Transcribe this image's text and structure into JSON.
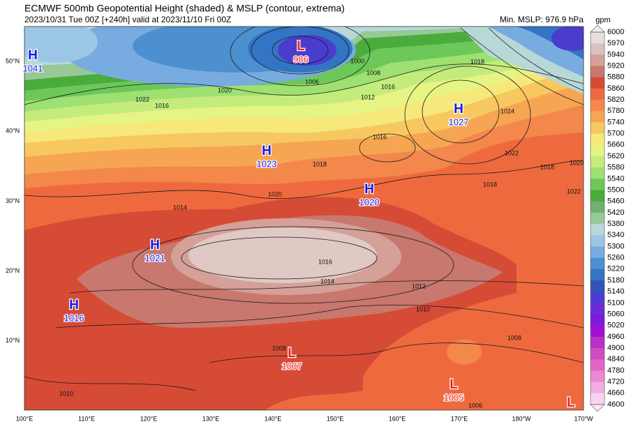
{
  "header": {
    "title": "ECMWF 500mb Geopotential Height (shaded) & MSLP (contour, extrema)",
    "subtitle": "2023/10/31 Tue 00Z [+240h] valid at 2023/11/10 Fri 00Z",
    "min_mslp": "Min. MSLP: 976.9 hPa"
  },
  "colorbar": {
    "unit": "gpm",
    "labels": [
      "6000",
      "5970",
      "5940",
      "5920",
      "5880",
      "5860",
      "5820",
      "5780",
      "5740",
      "5700",
      "5660",
      "5620",
      "5580",
      "5540",
      "5500",
      "5460",
      "5420",
      "5380",
      "5340",
      "5300",
      "5260",
      "5220",
      "5180",
      "5140",
      "5100",
      "5060",
      "5020",
      "4960",
      "4900",
      "4840",
      "4780",
      "4720",
      "4660",
      "4600"
    ],
    "colors": [
      "#e6dede",
      "#d8c2c0",
      "#d4a098",
      "#c8786e",
      "#d64b36",
      "#ee6a3e",
      "#f3874c",
      "#f6a653",
      "#f7c860",
      "#f6e87a",
      "#e6f484",
      "#c4ec7c",
      "#9ee072",
      "#6cc858",
      "#4aac3c",
      "#70b070",
      "#98c898",
      "#b8d8d8",
      "#9cc6e6",
      "#78ace0",
      "#4c90d0",
      "#3474c4",
      "#3054b8",
      "#4a3ccc",
      "#6a2cd8",
      "#8018dc",
      "#a010d0",
      "#b830c8",
      "#d04cc4",
      "#e066c8",
      "#ea88d4",
      "#f2aee2",
      "#f8d4f0"
    ]
  },
  "axes": {
    "lat_labels": [
      "50°N",
      "40°N",
      "30°N",
      "20°N",
      "10°N"
    ],
    "lon_labels": [
      "100°E",
      "110°E",
      "120°E",
      "130°E",
      "140°E",
      "150°E",
      "160°E",
      "170°E",
      "180°W",
      "170°W"
    ]
  },
  "extrema": [
    {
      "letter": "H",
      "value": "1041"
    },
    {
      "letter": "L",
      "value": "986"
    },
    {
      "letter": "H",
      "value": "1027"
    },
    {
      "letter": "H",
      "value": "1023"
    },
    {
      "letter": "H",
      "value": "1020"
    },
    {
      "letter": "H",
      "value": "1021"
    },
    {
      "letter": "H",
      "value": "1016"
    },
    {
      "letter": "L",
      "value": "1007"
    },
    {
      "letter": "L",
      "value": "1005"
    },
    {
      "letter": "L"
    }
  ],
  "contour_labels": [
    "1016",
    "1014",
    "1012",
    "1010",
    "1008",
    "1016",
    "1018",
    "1020",
    "1014",
    "1020",
    "1018",
    "1024",
    "1022",
    "1018",
    "1000",
    "1006",
    "1008",
    "1012",
    "1016",
    "1022",
    "1016",
    "1010",
    "1006",
    "1008",
    "1020",
    "1022",
    "1018"
  ]
}
